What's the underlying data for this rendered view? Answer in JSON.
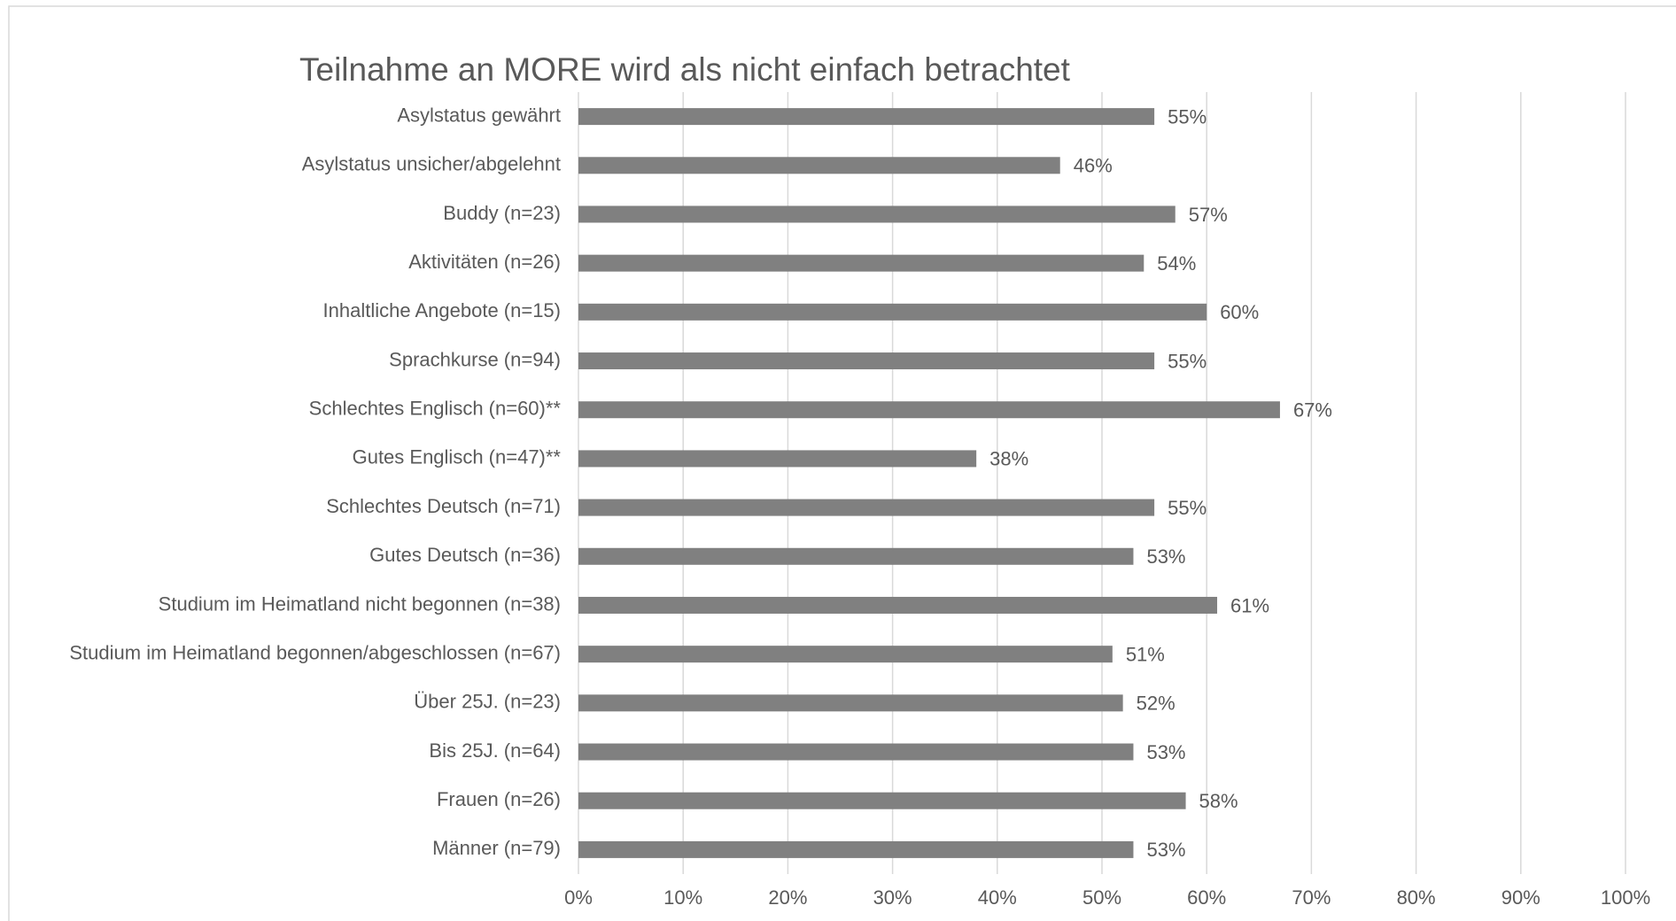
{
  "chart_data": {
    "type": "bar",
    "orientation": "horizontal",
    "title": "Teilnahme an MORE wird als nicht einfach betrachtet",
    "categories": [
      "Asylstatus gewährt",
      "Asylstatus unsicher/abgelehnt",
      "Buddy (n=23)",
      "Aktivitäten (n=26)",
      "Inhaltliche Angebote (n=15)",
      "Sprachkurse (n=94)",
      "Schlechtes Englisch (n=60)**",
      "Gutes Englisch (n=47)**",
      "Schlechtes Deutsch (n=71)",
      "Gutes Deutsch (n=36)",
      "Studium im Heimatland nicht begonnen (n=38)",
      "Studium im Heimatland begonnen/abgeschlossen (n=67)",
      "Über 25J. (n=23)",
      "Bis 25J. (n=64)",
      "Frauen (n=26)",
      "Männer (n=79)"
    ],
    "values": [
      55,
      46,
      57,
      54,
      60,
      55,
      67,
      38,
      55,
      53,
      61,
      51,
      52,
      53,
      58,
      53
    ],
    "value_labels": [
      "55%",
      "46%",
      "57%",
      "54%",
      "60%",
      "55%",
      "67%",
      "38%",
      "55%",
      "53%",
      "61%",
      "51%",
      "52%",
      "53%",
      "58%",
      "53%"
    ],
    "color": "#808080",
    "xlim": [
      0,
      100
    ],
    "xticks": [
      {
        "value": 0,
        "label": "0%"
      },
      {
        "value": 10,
        "label": "10%"
      },
      {
        "value": 20,
        "label": "20%"
      },
      {
        "value": 30,
        "label": "30%"
      },
      {
        "value": 40,
        "label": "40%"
      },
      {
        "value": 50,
        "label": "50%"
      },
      {
        "value": 60,
        "label": "60%"
      },
      {
        "value": 70,
        "label": "70%"
      },
      {
        "value": 80,
        "label": "80%"
      },
      {
        "value": 90,
        "label": "90%"
      },
      {
        "value": 100,
        "label": "100%"
      }
    ],
    "grid": true
  }
}
